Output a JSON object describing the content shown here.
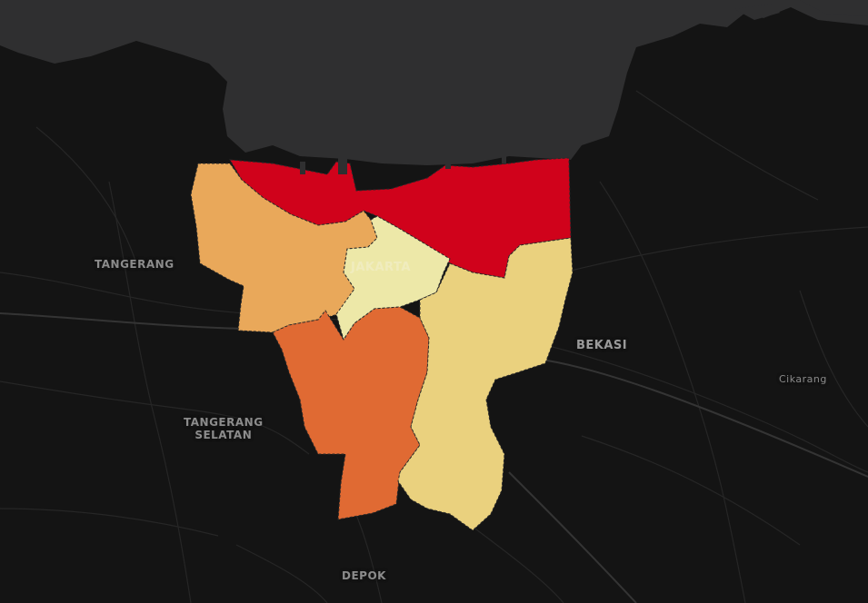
{
  "map": {
    "labels": {
      "tangerang": "TANGERANG",
      "tangerang_selatan_line1": "TANGERANG",
      "tangerang_selatan_line2": "SELATAN",
      "bekasi": "BEKASI",
      "cikarang": "Cikarang",
      "depok": "DEPOK",
      "jakarta": "JAKARTA"
    },
    "colors": {
      "background": "#141414",
      "sea": "#2f2f30",
      "roads": "#262626",
      "north": "#d0021b",
      "west": "#e9a85a",
      "central": "#ede8a8",
      "south": "#e06a33",
      "east": "#ead17e"
    },
    "icons": [
      "road-network",
      "region-polygons"
    ]
  }
}
